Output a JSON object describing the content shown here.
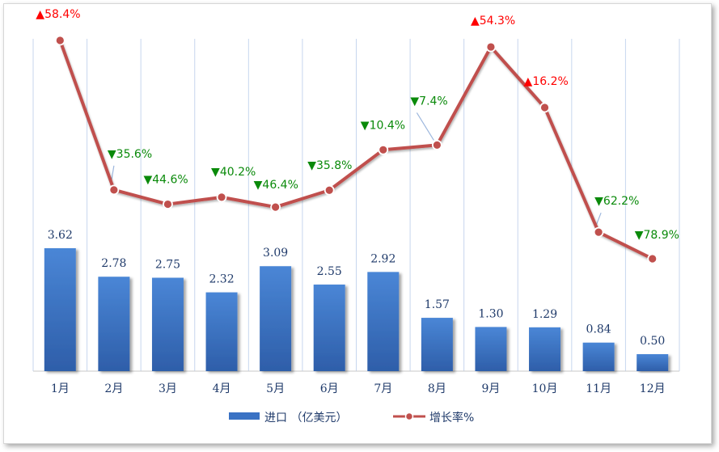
{
  "chart_data": {
    "type": "bar+line",
    "categories": [
      "1月",
      "2月",
      "3月",
      "4月",
      "5月",
      "6月",
      "7月",
      "8月",
      "9月",
      "10月",
      "11月",
      "12月"
    ],
    "series": [
      {
        "name": "进口 （亿美元）",
        "type": "bar",
        "values": [
          3.62,
          2.78,
          2.75,
          2.32,
          3.09,
          2.55,
          2.92,
          1.57,
          1.3,
          1.29,
          0.84,
          0.5
        ],
        "labels": [
          "3.62",
          "2.78",
          "2.75",
          "2.32",
          "3.09",
          "2.55",
          "2.92",
          "1.57",
          "1.30",
          "1.29",
          "0.84",
          "0.50"
        ],
        "color": "#3a72c4"
      },
      {
        "name": "增长率%",
        "type": "line",
        "values": [
          58.4,
          -35.6,
          -44.6,
          -40.2,
          -46.4,
          -35.8,
          -10.4,
          -7.4,
          54.3,
          16.2,
          -62.2,
          -78.9
        ],
        "labels": [
          "58.4%",
          "35.6%",
          "44.6%",
          "40.2%",
          "46.4%",
          "35.8%",
          "10.4%",
          "7.4%",
          "54.3%",
          "16.2%",
          "62.2%",
          "78.9%"
        ],
        "color": "#c0504d"
      }
    ],
    "up_color": "#ff0000",
    "down_color": "#0a8a0a",
    "ylim_bars": [
      0,
      10.5
    ],
    "ylim_rate": [
      -100,
      70
    ],
    "grid": "vertical",
    "legend_position": "bottom"
  }
}
